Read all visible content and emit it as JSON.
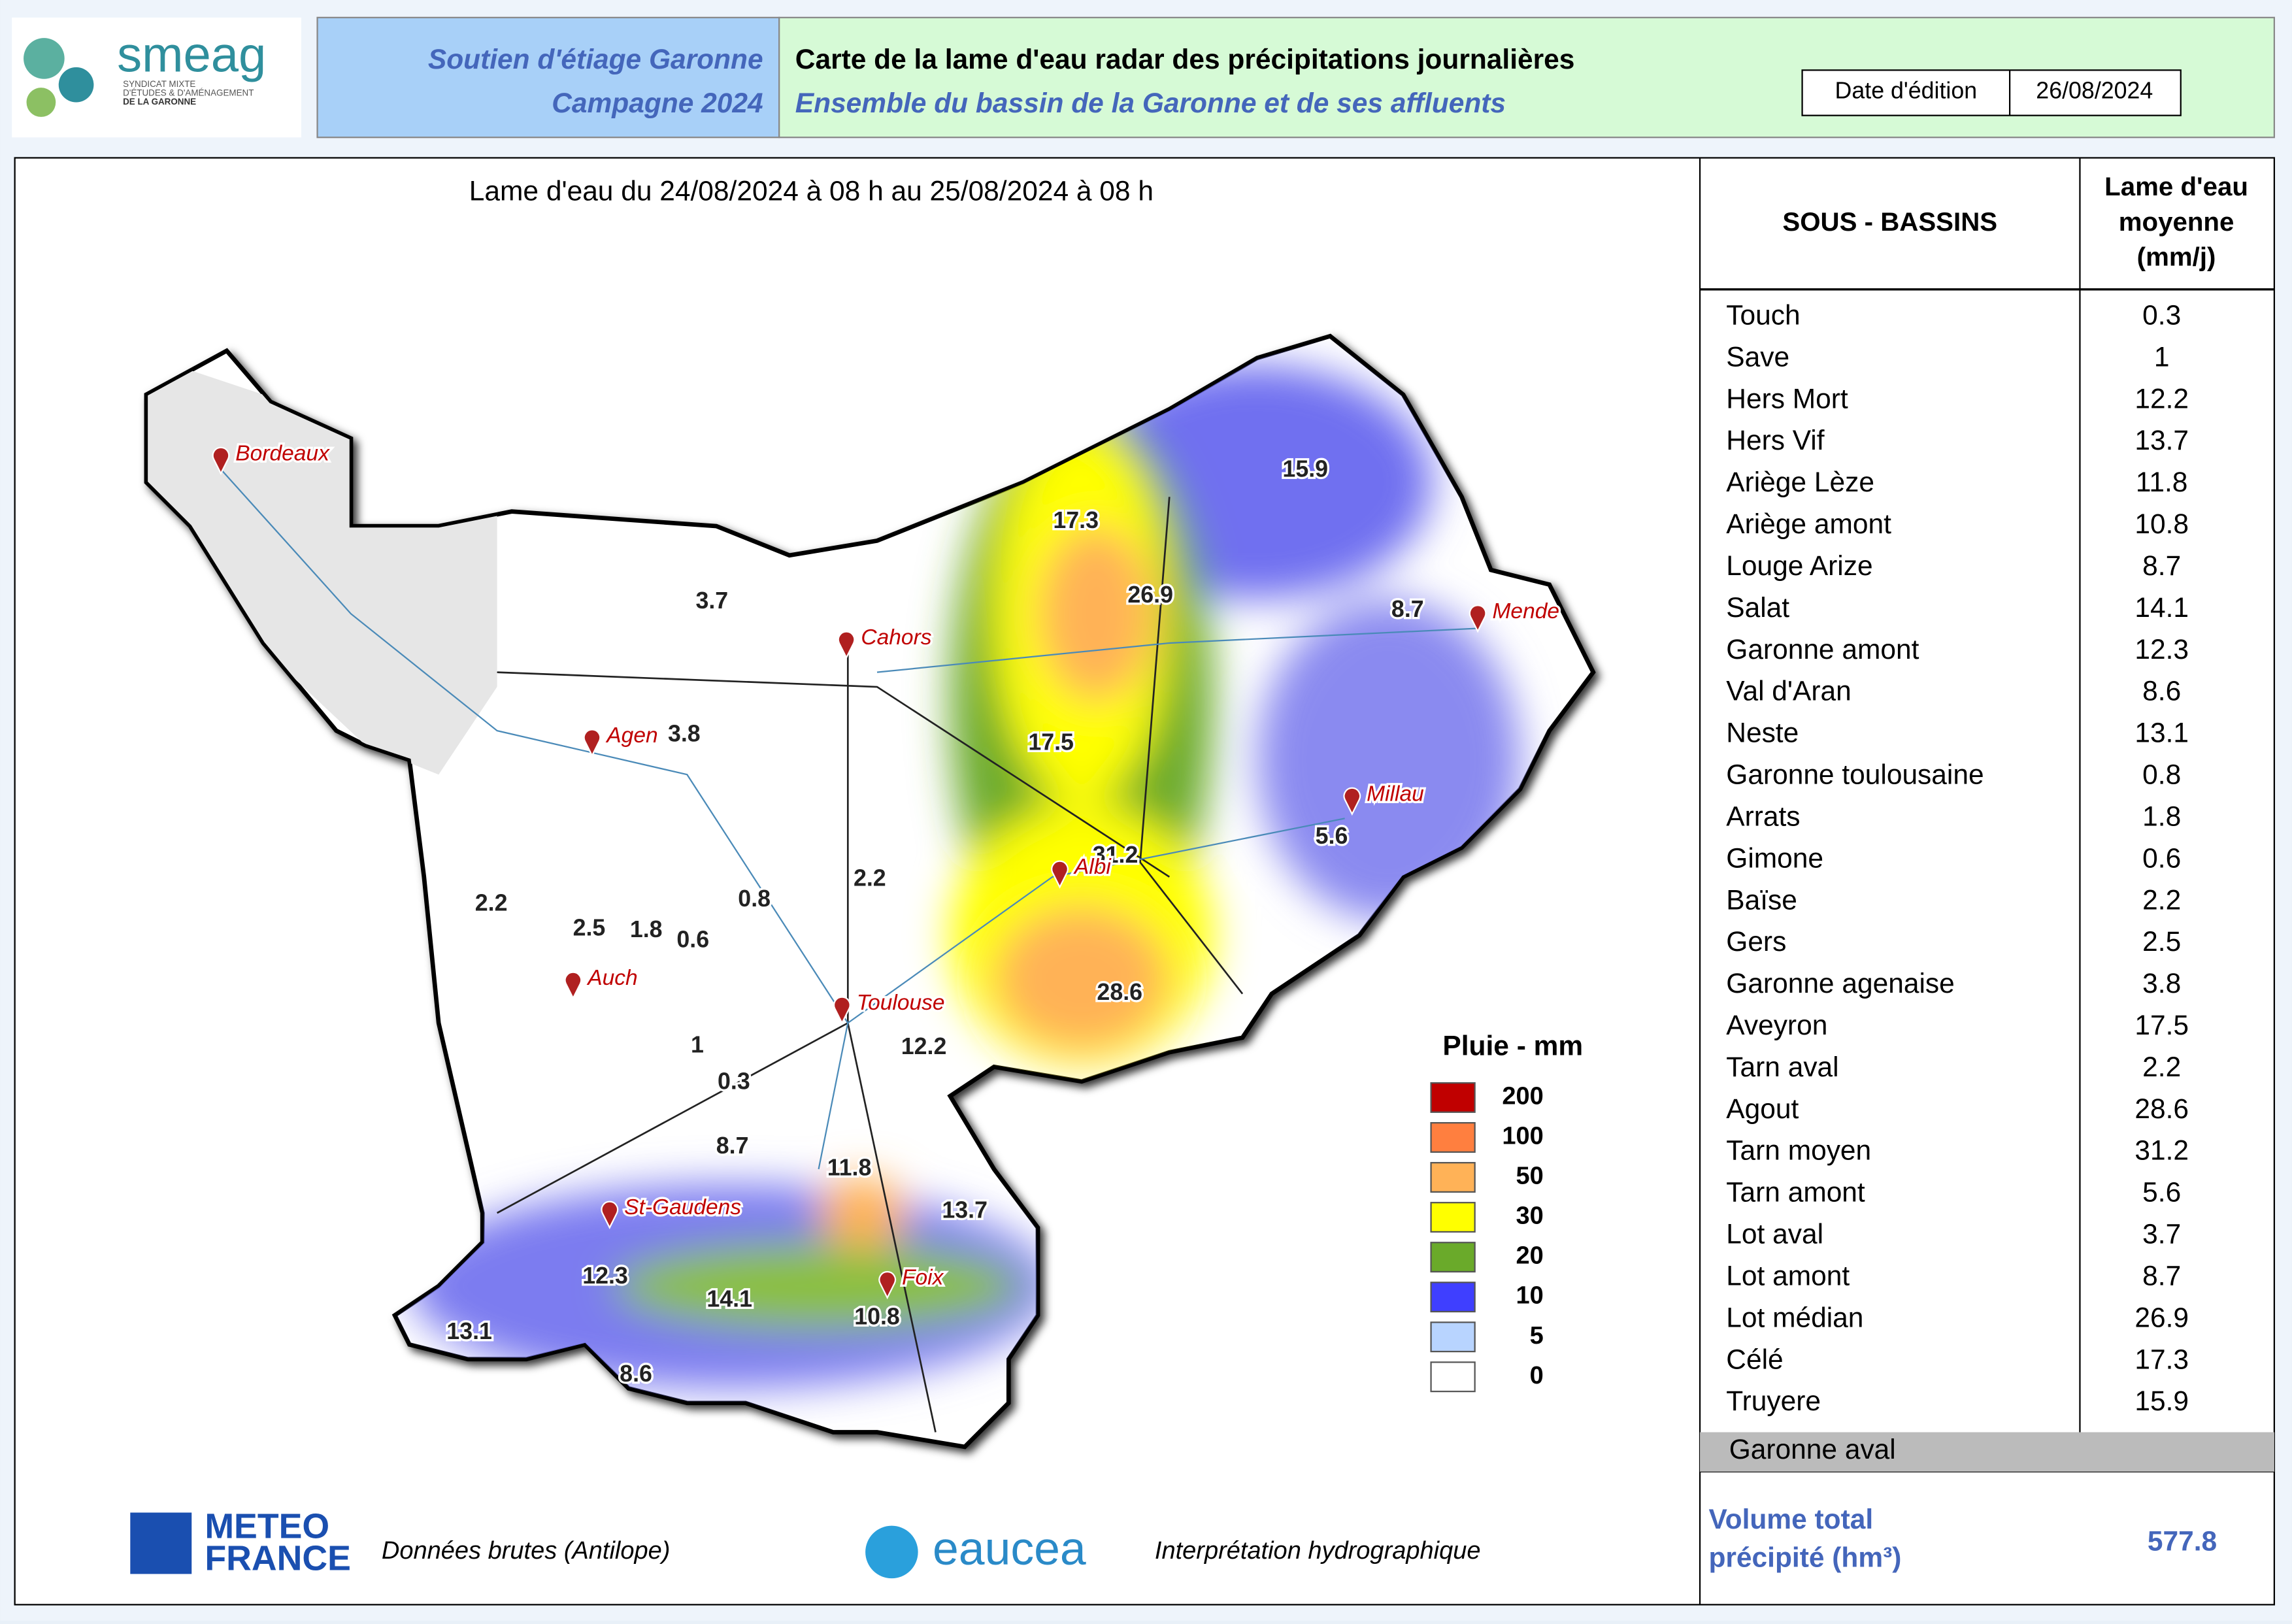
{
  "header": {
    "logo": {
      "name": "smeag",
      "lines": [
        "SYNDICAT MIXTE",
        "D'ÉTUDES & D'AMÉNAGEMENT",
        "DE LA GARONNE"
      ]
    },
    "program": [
      "Soutien d'étiage Garonne",
      "Campagne 2024"
    ],
    "title": "Carte de la lame d'eau radar des précipitations journalières",
    "subtitle": "Ensemble du bassin de la Garonne et de ses affluents",
    "date_label": "Date d'édition",
    "date": "26/08/2024"
  },
  "map": {
    "title": "Lame d'eau du 24/08/2024  à 08 h au  25/08/2024  à 08 h",
    "values": [
      3.7,
      17.3,
      15.9,
      26.9,
      8.7,
      3.8,
      17.5,
      31.2,
      5.6,
      2.2,
      2.5,
      1.8,
      0.6,
      0.8,
      2.2,
      28.6,
      12.2,
      1,
      0.3,
      8.7,
      11.8,
      13.7,
      12.3,
      14.1,
      10.8,
      13.1,
      8.6
    ],
    "cities": [
      "Bordeaux",
      "Cahors",
      "Agen",
      "Mende",
      "Millau",
      "Albi",
      "Auch",
      "Toulouse",
      "St-Gaudens",
      "Foix"
    ]
  },
  "legend": {
    "title": "Pluie - mm",
    "items": [
      {
        "value": 200,
        "color": "#c00000"
      },
      {
        "value": 100,
        "color": "#ff7f3f"
      },
      {
        "value": 50,
        "color": "#ffb257"
      },
      {
        "value": 30,
        "color": "#ffff00"
      },
      {
        "value": 20,
        "color": "#6aaa2a"
      },
      {
        "value": 10,
        "color": "#3f3fff"
      },
      {
        "value": 5,
        "color": "#b8d4ff"
      },
      {
        "value": 0,
        "color": "#ffffff"
      }
    ]
  },
  "table": {
    "headers": [
      "SOUS - BASSINS",
      [
        "Lame d'eau",
        "moyenne",
        "(mm/j)"
      ]
    ],
    "rows": [
      [
        "Touch",
        0.3
      ],
      [
        "Save",
        1
      ],
      [
        "Hers Mort",
        12.2
      ],
      [
        "Hers Vif",
        13.7
      ],
      [
        "Ariège Lèze",
        11.8
      ],
      [
        "Ariège amont",
        10.8
      ],
      [
        "Louge Arize",
        8.7
      ],
      [
        "Salat",
        14.1
      ],
      [
        "Garonne amont",
        12.3
      ],
      [
        "Val d'Aran",
        8.6
      ],
      [
        "Neste",
        13.1
      ],
      [
        "Garonne toulousaine",
        0.8
      ],
      [
        "Arrats",
        1.8
      ],
      [
        "Gimone",
        0.6
      ],
      [
        "Baïse",
        2.2
      ],
      [
        "Gers",
        2.5
      ],
      [
        "Garonne agenaise",
        3.8
      ],
      [
        "Aveyron",
        17.5
      ],
      [
        "Tarn aval",
        2.2
      ],
      [
        "Agout",
        28.6
      ],
      [
        "Tarn moyen",
        31.2
      ],
      [
        "Tarn amont",
        5.6
      ],
      [
        "Lot aval",
        3.7
      ],
      [
        "Lot amont",
        8.7
      ],
      [
        "Lot médian",
        26.9
      ],
      [
        "Célé",
        17.3
      ],
      [
        "Truyere",
        15.9
      ],
      [
        "Garonne aval"
      ]
    ],
    "total_label": [
      "Volume total",
      "précipité (hm³)"
    ],
    "total": 577.8
  },
  "footer": {
    "meteo": [
      "METEO",
      "FRANCE"
    ],
    "meteo_note": "Données brutes (Antilope)",
    "eaucea": "eaucea",
    "eaucea_note": "Interprétation hydrographique"
  }
}
